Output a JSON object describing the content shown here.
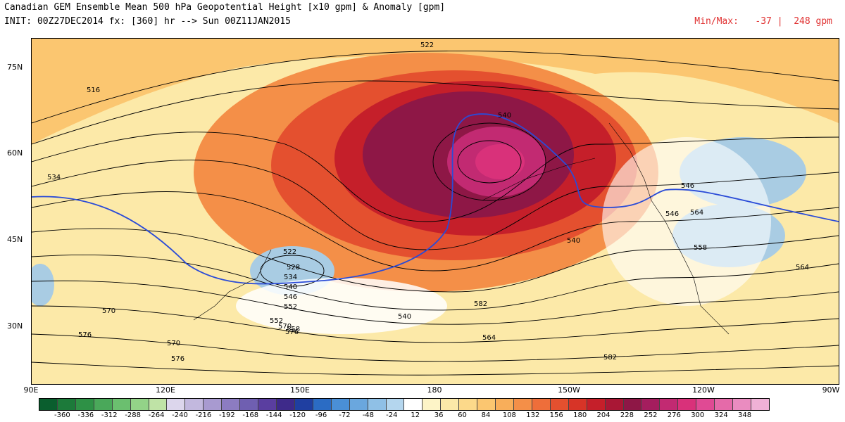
{
  "header": {
    "title": "Canadian GEM Ensemble Mean 500 hPa Geopotential Height [x10 gpm] & Anomaly [gpm]",
    "init_line": "INIT: 00Z27DEC2014 fx: [360] hr --> Sun 00Z11JAN2015",
    "minmax_label": "Min/Max:",
    "min_value": "-37",
    "separator": "|",
    "max_value": "248 gpm"
  },
  "map": {
    "lat_labels": [
      "75N",
      "60N",
      "45N",
      "30N"
    ],
    "lon_labels": [
      "90E",
      "120E",
      "150E",
      "180",
      "150W",
      "120W",
      "90W"
    ],
    "contour_labels": [
      "522",
      "516",
      "534",
      "540",
      "546",
      "522",
      "528",
      "534",
      "540",
      "546",
      "552",
      "558",
      "564",
      "570",
      "576",
      "582",
      "552",
      "558",
      "564",
      "570",
      "576",
      "582",
      "540",
      "546",
      "564",
      "570",
      "576",
      "546",
      "540"
    ],
    "colors": {
      "background_warm": "#fce9a8",
      "anomaly_max": "#d9317a",
      "contour_line": "#000000",
      "highlight_contour": "#2a4bd7",
      "negative_anomaly": "#a9cce3"
    }
  },
  "colorbar": {
    "labels": [
      "-360",
      "-336",
      "-312",
      "-288",
      "-264",
      "-240",
      "-216",
      "-192",
      "-168",
      "-144",
      "-120",
      "-96",
      "-72",
      "-48",
      "-24",
      "12",
      "36",
      "60",
      "84",
      "108",
      "132",
      "156",
      "180",
      "204",
      "228",
      "252",
      "276",
      "300",
      "324",
      "348"
    ],
    "colors": [
      "#0a5e2e",
      "#1c7a3a",
      "#2e9146",
      "#4aa85a",
      "#6bbf6f",
      "#93d388",
      "#bfe3a6",
      "#dcd6ec",
      "#c2b8de",
      "#a89ad0",
      "#8c7cc1",
      "#6f5fb1",
      "#5a3ea0",
      "#3e2a8a",
      "#1f3fa1",
      "#2b6cc4",
      "#4a8fd6",
      "#6aa7de",
      "#8fc0e6",
      "#b4d6ee",
      "#ffffff",
      "#fdf4c7",
      "#fce9a8",
      "#fcd98a",
      "#fbc670",
      "#f8ae5a",
      "#f48f48",
      "#ee6e3a",
      "#e4502f",
      "#d73427",
      "#c51f2a",
      "#a91735",
      "#8e1746",
      "#a41d5e",
      "#c22a72",
      "#d9317a",
      "#e04a94",
      "#e56aa9",
      "#ea8cc0",
      "#efb1d6"
    ]
  }
}
